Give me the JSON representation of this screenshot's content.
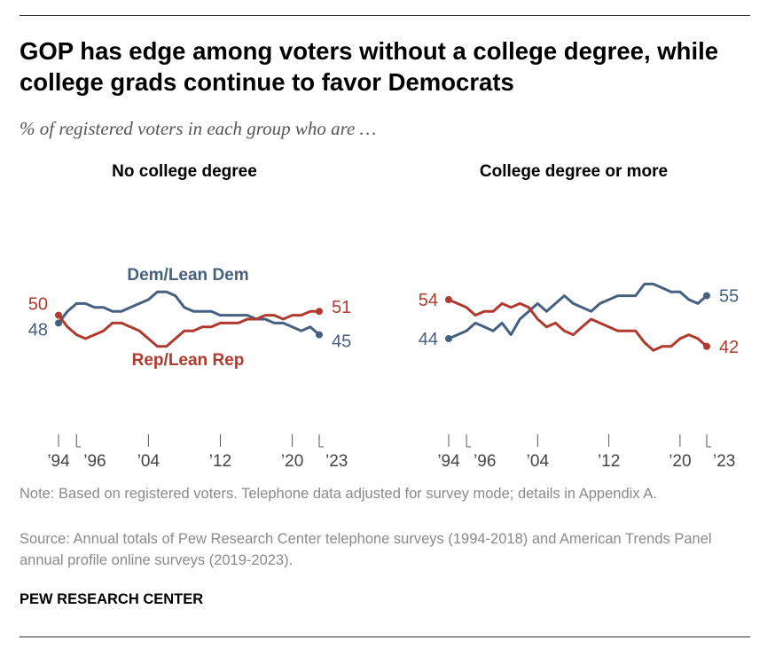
{
  "title": "GOP has edge among voters without a college degree, while college grads continue to favor Democrats",
  "subtitle": "% of registered voters in each group who are …",
  "note": "Note: Based on registered voters. Telephone data adjusted for survey mode; details in Appendix A.",
  "source": "Source: Annual totals of Pew Research Center telephone surveys (1994-2018) and American Trends Panel annual profile online surveys (2019-2023).",
  "organization": "PEW RESEARCH CENTER",
  "colors": {
    "dem": "#46617f",
    "rep": "#b03a2e",
    "axis": "#555555"
  },
  "chart_data": [
    {
      "type": "line",
      "title": "No college degree",
      "x": [
        1994,
        1995,
        1996,
        1997,
        1998,
        1999,
        2000,
        2001,
        2002,
        2003,
        2004,
        2005,
        2006,
        2007,
        2008,
        2009,
        2010,
        2011,
        2012,
        2013,
        2014,
        2015,
        2016,
        2017,
        2018,
        2019,
        2020,
        2021,
        2022,
        2023
      ],
      "xticks": [
        {
          "year": 1994,
          "label": "’94"
        },
        {
          "year": 1996,
          "label": "’96"
        },
        {
          "year": 2004,
          "label": "’04"
        },
        {
          "year": 2012,
          "label": "’12"
        },
        {
          "year": 2020,
          "label": "’20"
        },
        {
          "year": 2023,
          "label": "’23"
        }
      ],
      "ylim": [
        0,
        100
      ],
      "series": [
        {
          "name": "Dem/Lean Dem",
          "key": "dem",
          "start_label": "48",
          "end_label": "45",
          "values": [
            48,
            51,
            53,
            53,
            52,
            52,
            51,
            51,
            52,
            53,
            54,
            56,
            56,
            55,
            52,
            51,
            51,
            51,
            50,
            50,
            50,
            50,
            49,
            49,
            48,
            48,
            47,
            46,
            47,
            45
          ]
        },
        {
          "name": "Rep/Lean Rep",
          "key": "rep",
          "start_label": "50",
          "end_label": "51",
          "values": [
            50,
            47,
            45,
            44,
            45,
            46,
            48,
            48,
            47,
            46,
            44,
            42,
            42,
            44,
            46,
            46,
            47,
            47,
            48,
            48,
            48,
            49,
            49,
            50,
            50,
            49,
            50,
            50,
            51,
            51
          ]
        }
      ]
    },
    {
      "type": "line",
      "title": "College degree or more",
      "x": [
        1994,
        1995,
        1996,
        1997,
        1998,
        1999,
        2000,
        2001,
        2002,
        2003,
        2004,
        2005,
        2006,
        2007,
        2008,
        2009,
        2010,
        2011,
        2012,
        2013,
        2014,
        2015,
        2016,
        2017,
        2018,
        2019,
        2020,
        2021,
        2022,
        2023
      ],
      "xticks": [
        {
          "year": 1994,
          "label": "’94"
        },
        {
          "year": 1996,
          "label": "’96"
        },
        {
          "year": 2004,
          "label": "’04"
        },
        {
          "year": 2012,
          "label": "’12"
        },
        {
          "year": 2020,
          "label": "’20"
        },
        {
          "year": 2023,
          "label": "’23"
        }
      ],
      "ylim": [
        0,
        100
      ],
      "series": [
        {
          "name": "Dem/Lean Dem",
          "key": "dem",
          "start_label": "44",
          "end_label": "55",
          "values": [
            44,
            45,
            46,
            48,
            47,
            46,
            48,
            45,
            49,
            51,
            53,
            51,
            53,
            55,
            53,
            52,
            51,
            53,
            54,
            55,
            55,
            55,
            58,
            58,
            57,
            56,
            56,
            54,
            53,
            55
          ]
        },
        {
          "name": "Rep/Lean Rep",
          "key": "rep",
          "start_label": "54",
          "end_label": "42",
          "values": [
            54,
            53,
            52,
            50,
            51,
            51,
            53,
            52,
            53,
            52,
            49,
            47,
            48,
            46,
            45,
            47,
            49,
            48,
            47,
            46,
            46,
            46,
            43,
            41,
            42,
            42,
            44,
            45,
            44,
            42
          ]
        }
      ]
    }
  ]
}
